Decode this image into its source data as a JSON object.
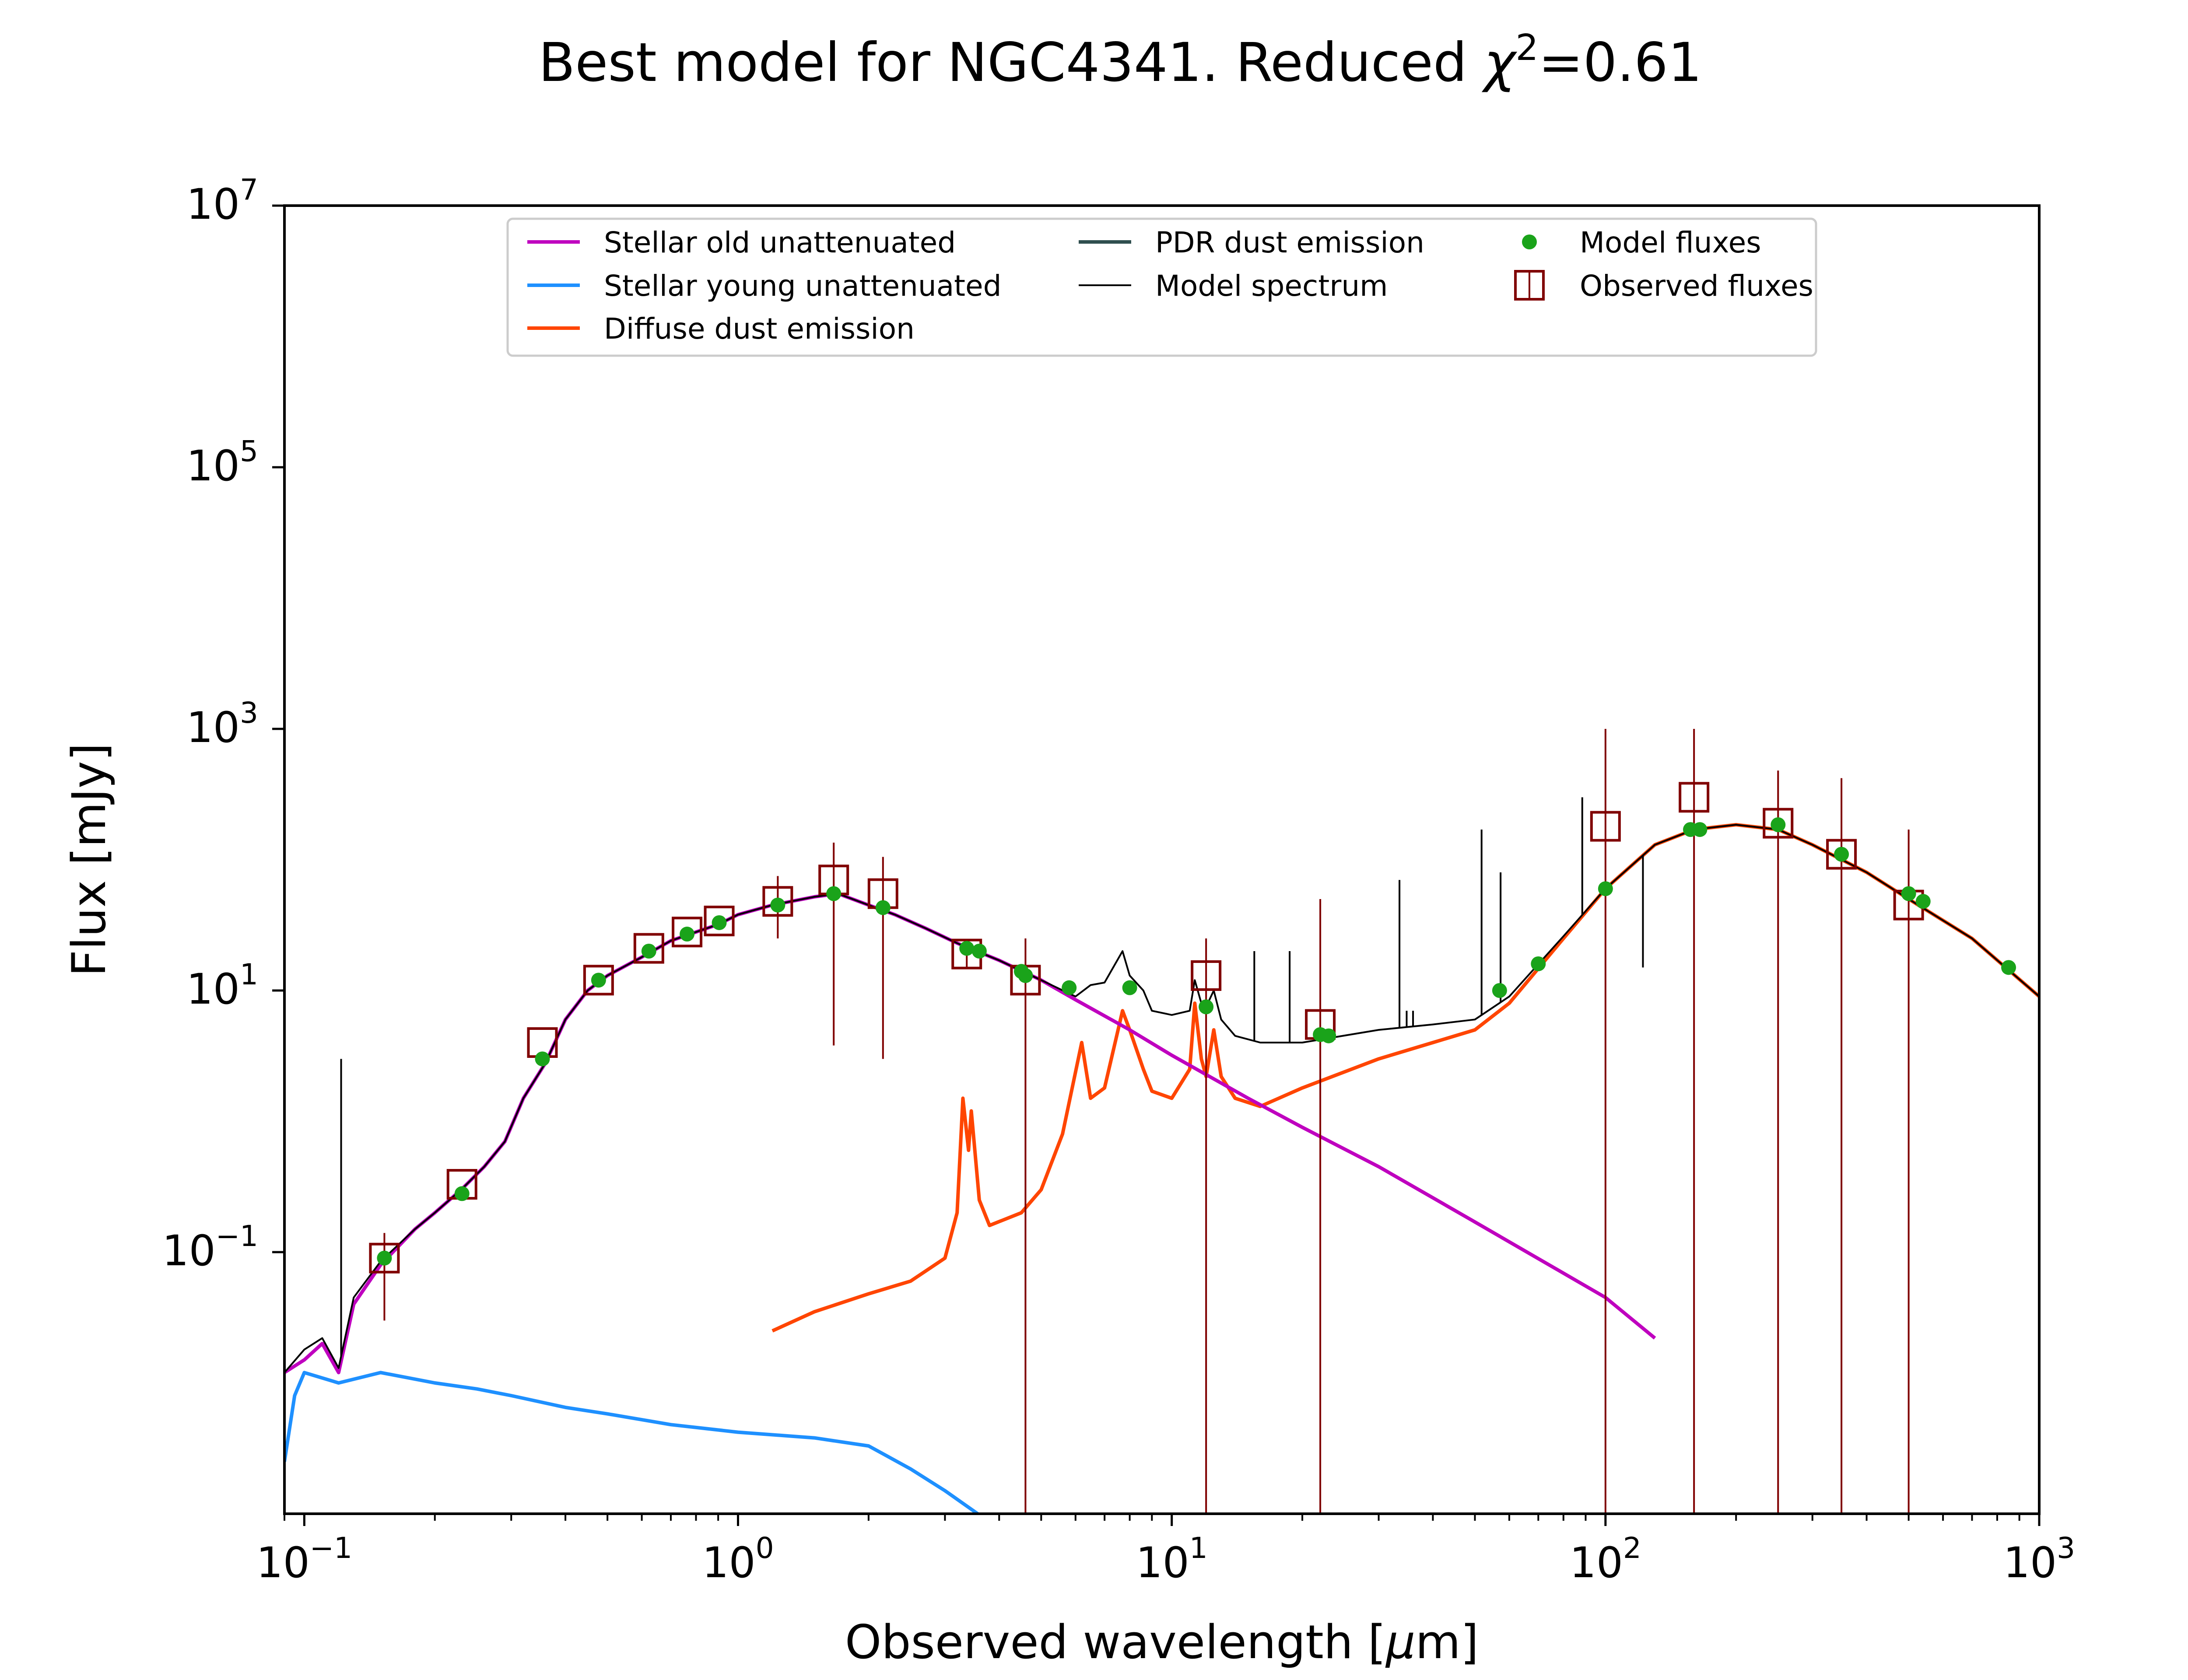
{
  "chart_data": {
    "type": "line",
    "title": "Best model for NGC4341. Reduced χ²=0.61",
    "title_prefix": "Best model for NGC4341. Reduced ",
    "title_chi": "χ",
    "title_sup": "2",
    "title_suffix": "=0.61",
    "xlabel_prefix": "Observed wavelength [",
    "xlabel_mu": "μ",
    "xlabel_suffix": "m]",
    "ylabel": "Flux [mJy]",
    "x_scale": "log",
    "y_scale": "log",
    "xlim": [
      0.09,
      1000
    ],
    "ylim": [
      0.001,
      10000000
    ],
    "x_ticks": [
      {
        "value": 0.1,
        "base": "10",
        "exp": "−1"
      },
      {
        "value": 1,
        "base": "10",
        "exp": "0"
      },
      {
        "value": 10,
        "base": "10",
        "exp": "1"
      },
      {
        "value": 100,
        "base": "10",
        "exp": "2"
      },
      {
        "value": 1000,
        "base": "10",
        "exp": "3"
      }
    ],
    "y_ticks": [
      {
        "value": 0.1,
        "base": "10",
        "exp": "−1"
      },
      {
        "value": 10,
        "base": "10",
        "exp": "1"
      },
      {
        "value": 1000,
        "base": "10",
        "exp": "3"
      },
      {
        "value": 100000,
        "base": "10",
        "exp": "5"
      },
      {
        "value": 10000000,
        "base": "10",
        "exp": "7"
      }
    ],
    "legend_position": "top",
    "legend": [
      {
        "label": "Stellar old unattenuated",
        "color": "#bf00bf",
        "kind": "line"
      },
      {
        "label": "Stellar young unattenuated",
        "color": "#1e90ff",
        "kind": "line"
      },
      {
        "label": "Diffuse dust emission",
        "color": "#ff4500",
        "kind": "line"
      },
      {
        "label": "PDR dust emission",
        "color": "#2f4f4f",
        "kind": "line"
      },
      {
        "label": "Model spectrum",
        "color": "#000000",
        "kind": "thinline"
      },
      {
        "label": "Model fluxes",
        "color": "#1aa31a",
        "kind": "dot"
      },
      {
        "label": "Observed fluxes",
        "color": "#800000",
        "kind": "square"
      }
    ],
    "series": [
      {
        "name": "Stellar old unattenuated",
        "color": "#bf00bf",
        "points": [
          [
            0.09,
            0.012
          ],
          [
            0.1,
            0.015
          ],
          [
            0.11,
            0.02
          ],
          [
            0.12,
            0.012
          ],
          [
            0.13,
            0.04
          ],
          [
            0.15,
            0.08
          ],
          [
            0.18,
            0.15
          ],
          [
            0.2,
            0.2
          ],
          [
            0.23,
            0.3
          ],
          [
            0.26,
            0.45
          ],
          [
            0.29,
            0.7
          ],
          [
            0.32,
            1.5
          ],
          [
            0.36,
            2.8
          ],
          [
            0.4,
            6
          ],
          [
            0.45,
            10
          ],
          [
            0.5,
            13
          ],
          [
            0.6,
            18
          ],
          [
            0.7,
            24
          ],
          [
            0.8,
            28
          ],
          [
            0.9,
            32
          ],
          [
            1.0,
            38
          ],
          [
            1.2,
            45
          ],
          [
            1.5,
            52
          ],
          [
            1.7,
            55
          ],
          [
            2.0,
            45
          ],
          [
            2.3,
            38
          ],
          [
            2.7,
            30
          ],
          [
            3.2,
            23
          ],
          [
            4.0,
            17
          ],
          [
            5.0,
            12
          ],
          [
            6.0,
            8.5
          ],
          [
            8.0,
            5
          ],
          [
            10.0,
            3.2
          ],
          [
            15.0,
            1.5
          ],
          [
            20.0,
            0.9
          ],
          [
            30.0,
            0.45
          ],
          [
            50.0,
            0.17
          ],
          [
            100.0,
            0.045
          ],
          [
            130.0,
            0.022
          ]
        ]
      },
      {
        "name": "Stellar young unattenuated",
        "color": "#1e90ff",
        "points": [
          [
            0.09,
            0.0025
          ],
          [
            0.095,
            0.008
          ],
          [
            0.1,
            0.012
          ],
          [
            0.12,
            0.01
          ],
          [
            0.15,
            0.012
          ],
          [
            0.2,
            0.01
          ],
          [
            0.25,
            0.009
          ],
          [
            0.3,
            0.008
          ],
          [
            0.4,
            0.0065
          ],
          [
            0.5,
            0.0058
          ],
          [
            0.7,
            0.0048
          ],
          [
            1.0,
            0.0042
          ],
          [
            1.5,
            0.0038
          ],
          [
            2.0,
            0.0033
          ],
          [
            2.5,
            0.0022
          ],
          [
            3.0,
            0.0015
          ],
          [
            3.6,
            0.00098
          ]
        ]
      },
      {
        "name": "Diffuse dust emission",
        "color": "#ff4500",
        "points": [
          [
            1.2,
            0.025
          ],
          [
            1.5,
            0.035
          ],
          [
            2.0,
            0.048
          ],
          [
            2.5,
            0.06
          ],
          [
            3.0,
            0.09
          ],
          [
            3.2,
            0.2
          ],
          [
            3.3,
            1.5
          ],
          [
            3.4,
            0.6
          ],
          [
            3.45,
            1.2
          ],
          [
            3.6,
            0.25
          ],
          [
            3.8,
            0.16
          ],
          [
            4.5,
            0.2
          ],
          [
            5.0,
            0.3
          ],
          [
            5.6,
            0.8
          ],
          [
            6.2,
            4
          ],
          [
            6.5,
            1.5
          ],
          [
            7.0,
            1.8
          ],
          [
            7.7,
            7
          ],
          [
            8.0,
            5
          ],
          [
            8.6,
            2.5
          ],
          [
            9.0,
            1.7
          ],
          [
            10.0,
            1.5
          ],
          [
            11.0,
            2.5
          ],
          [
            11.3,
            8
          ],
          [
            11.7,
            3
          ],
          [
            12.0,
            2.2
          ],
          [
            12.5,
            5
          ],
          [
            13.0,
            2.2
          ],
          [
            14.0,
            1.5
          ],
          [
            16.0,
            1.3
          ],
          [
            20.0,
            1.8
          ],
          [
            30.0,
            3
          ],
          [
            40.0,
            4
          ],
          [
            50.0,
            5
          ],
          [
            60.0,
            8
          ],
          [
            80.0,
            25
          ],
          [
            100.0,
            60
          ],
          [
            130.0,
            130
          ],
          [
            160.0,
            170
          ],
          [
            200.0,
            185
          ],
          [
            250.0,
            170
          ],
          [
            300.0,
            130
          ],
          [
            400.0,
            80
          ],
          [
            500.0,
            50
          ],
          [
            700.0,
            25
          ],
          [
            1000.0,
            9
          ]
        ]
      },
      {
        "name": "Model spectrum",
        "color": "#000000",
        "points": [
          [
            0.09,
            0.012
          ],
          [
            0.1,
            0.018
          ],
          [
            0.11,
            0.022
          ],
          [
            0.12,
            0.013
          ],
          [
            0.13,
            0.045
          ],
          [
            0.15,
            0.085
          ],
          [
            0.18,
            0.15
          ],
          [
            0.2,
            0.2
          ],
          [
            0.23,
            0.3
          ],
          [
            0.26,
            0.45
          ],
          [
            0.29,
            0.7
          ],
          [
            0.32,
            1.5
          ],
          [
            0.36,
            2.8
          ],
          [
            0.4,
            6
          ],
          [
            0.45,
            10
          ],
          [
            0.5,
            13
          ],
          [
            0.6,
            18
          ],
          [
            0.7,
            24
          ],
          [
            0.8,
            28
          ],
          [
            0.9,
            32
          ],
          [
            1.0,
            38
          ],
          [
            1.2,
            45
          ],
          [
            1.5,
            52
          ],
          [
            1.7,
            55
          ],
          [
            2.0,
            45
          ],
          [
            2.3,
            38
          ],
          [
            2.7,
            30
          ],
          [
            3.2,
            23
          ],
          [
            4.0,
            17
          ],
          [
            5.0,
            12
          ],
          [
            6.0,
            9
          ],
          [
            6.5,
            11
          ],
          [
            7.0,
            11.5
          ],
          [
            7.7,
            20
          ],
          [
            8.0,
            13
          ],
          [
            8.6,
            10
          ],
          [
            9.0,
            7
          ],
          [
            10.0,
            6.5
          ],
          [
            11.0,
            7
          ],
          [
            11.3,
            12
          ],
          [
            11.7,
            8
          ],
          [
            12.0,
            7.5
          ],
          [
            12.5,
            10
          ],
          [
            13.0,
            6
          ],
          [
            14.0,
            4.5
          ],
          [
            16.0,
            4
          ],
          [
            20.0,
            4
          ],
          [
            30.0,
            5
          ],
          [
            40.0,
            5.5
          ],
          [
            50.0,
            6
          ],
          [
            60.0,
            9
          ],
          [
            80.0,
            26
          ],
          [
            100.0,
            60
          ],
          [
            130.0,
            130
          ],
          [
            160.0,
            170
          ],
          [
            200.0,
            185
          ],
          [
            250.0,
            170
          ],
          [
            300.0,
            130
          ],
          [
            400.0,
            80
          ],
          [
            500.0,
            50
          ],
          [
            700.0,
            25
          ],
          [
            1000.0,
            9
          ]
        ]
      }
    ],
    "spectrum_lines": [
      [
        0.1216,
        3
      ],
      [
        15.5,
        20
      ],
      [
        18.7,
        20
      ],
      [
        33.5,
        70
      ],
      [
        34.8,
        7
      ],
      [
        36.0,
        7
      ],
      [
        51.8,
        170
      ],
      [
        57.3,
        80
      ],
      [
        88.4,
        300
      ],
      [
        122,
        15
      ]
    ],
    "model_fluxes": [
      [
        0.153,
        0.09
      ],
      [
        0.231,
        0.28
      ],
      [
        0.354,
        3
      ],
      [
        0.477,
        12
      ],
      [
        0.623,
        20
      ],
      [
        0.763,
        27
      ],
      [
        0.905,
        33
      ],
      [
        1.235,
        45
      ],
      [
        1.662,
        55
      ],
      [
        2.159,
        43
      ],
      [
        3.368,
        21
      ],
      [
        3.6,
        20
      ],
      [
        4.5,
        14
      ],
      [
        4.6,
        13
      ],
      [
        5.8,
        10.5
      ],
      [
        8.0,
        10.5
      ],
      [
        12.0,
        7.5
      ],
      [
        22.0,
        4.6
      ],
      [
        23.0,
        4.5
      ],
      [
        57.0,
        10
      ],
      [
        70.0,
        16
      ],
      [
        100.0,
        60
      ],
      [
        157.0,
        170
      ],
      [
        165.0,
        170
      ],
      [
        250.0,
        185
      ],
      [
        350.0,
        110
      ],
      [
        500.0,
        55
      ],
      [
        540.0,
        48
      ],
      [
        850.0,
        15
      ]
    ],
    "observed_fluxes": [
      {
        "x": 0.153,
        "y": 0.09,
        "err_lo": 0.03,
        "err_hi": 0.14
      },
      {
        "x": 0.231,
        "y": 0.33
      },
      {
        "x": 0.354,
        "y": 4
      },
      {
        "x": 0.477,
        "y": 12
      },
      {
        "x": 0.623,
        "y": 21
      },
      {
        "x": 0.763,
        "y": 28
      },
      {
        "x": 0.905,
        "y": 34
      },
      {
        "x": 1.235,
        "y": 48,
        "err_lo": 25,
        "err_hi": 75
      },
      {
        "x": 1.662,
        "y": 70,
        "err_lo": 3.8,
        "err_hi": 135
      },
      {
        "x": 2.159,
        "y": 55,
        "err_lo": 3,
        "err_hi": 105
      },
      {
        "x": 3.368,
        "y": 19,
        "err_lo": 15,
        "err_hi": 23
      },
      {
        "x": 4.6,
        "y": 12,
        "err_lo": 0.001,
        "err_hi": 25
      },
      {
        "x": 12.0,
        "y": 13,
        "err_lo": 0.001,
        "err_hi": 25
      },
      {
        "x": 22.0,
        "y": 5.5,
        "err_lo": 0.001,
        "err_hi": 50
      },
      {
        "x": 100.0,
        "y": 180,
        "err_lo": 0.001,
        "err_hi": 1000
      },
      {
        "x": 160.0,
        "y": 300,
        "err_lo": 0.001,
        "err_hi": 1000
      },
      {
        "x": 250.0,
        "y": 190,
        "err_lo": 0.001,
        "err_hi": 480
      },
      {
        "x": 350.0,
        "y": 110,
        "err_lo": 0.001,
        "err_hi": 420
      },
      {
        "x": 500.0,
        "y": 45,
        "err_lo": 0.001,
        "err_hi": 170
      }
    ]
  }
}
